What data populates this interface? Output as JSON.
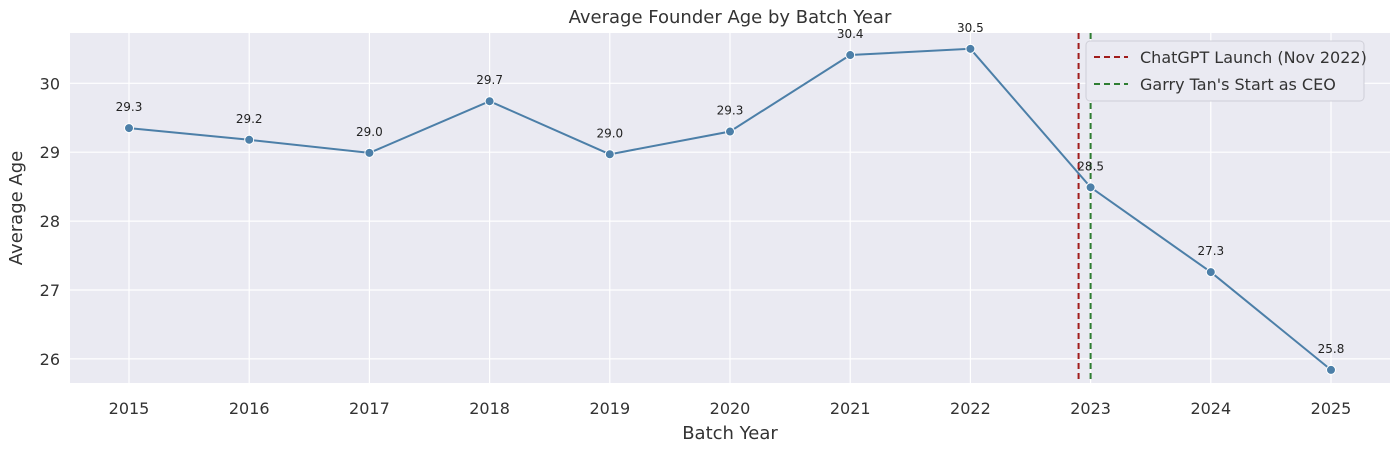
{
  "chart_data": {
    "type": "line",
    "title": "Average Founder Age by Batch Year",
    "xlabel": "Batch Year",
    "ylabel": "Average Age",
    "x": [
      "2015",
      "2016",
      "2017",
      "2018",
      "2019",
      "2020",
      "2021",
      "2022",
      "2023",
      "2024",
      "2025"
    ],
    "series": [
      {
        "values": [
          29.35,
          29.18,
          28.99,
          29.74,
          28.97,
          29.3,
          30.41,
          30.5,
          28.49,
          27.26,
          25.84
        ],
        "labels": [
          "29.3",
          "29.2",
          "29.0",
          "29.7",
          "29.0",
          "29.3",
          "30.4",
          "30.5",
          "28.5",
          "27.3",
          "25.8"
        ],
        "color": "#4c7fa8"
      }
    ],
    "ylim": [
      25.65,
      30.73
    ],
    "yticks": [
      "26",
      "27",
      "28",
      "29",
      "30"
    ],
    "grid": true,
    "background": "#eaeaf2",
    "vlines": [
      {
        "name": "ChatGPT Launch (Nov 2022)",
        "x": 2022.9,
        "color": "#a01c1c",
        "style": "dashed"
      },
      {
        "name": "Garry Tan's Start as CEO",
        "x": 2023.0,
        "color": "#2e7d32",
        "style": "dashed"
      }
    ],
    "legend": "top-right"
  }
}
